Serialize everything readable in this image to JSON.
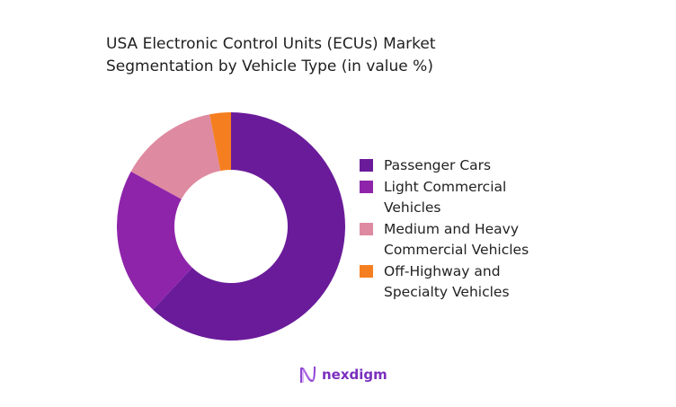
{
  "chart_data": {
    "type": "pie",
    "title": "USA Electronic Control Units (ECUs) Market Segmentation by Vehicle Type (in value %)",
    "title_lines": [
      "USA Electronic Control Units (ECUs) Market",
      "Segmentation by Vehicle Type (in value %)"
    ],
    "donut": true,
    "legend_position": "right",
    "slices": [
      {
        "label": "Passenger Cars",
        "value": 62,
        "color": "#6A1B9A"
      },
      {
        "label": "Light Commercial Vehicles",
        "label_lines": [
          "Light Commercial",
          "Vehicles"
        ],
        "value": 21,
        "color": "#8E24AA"
      },
      {
        "label": "Medium and Heavy Commercial Vehicles",
        "label_lines": [
          "Medium and Heavy",
          "Commercial Vehicles"
        ],
        "value": 14,
        "color": "#DE8AA0"
      },
      {
        "label": "Off-Highway and Specialty Vehicles",
        "label_lines": [
          "Off-Highway and",
          "Specialty Vehicles"
        ],
        "value": 3,
        "color": "#F57F20"
      }
    ]
  },
  "logo": {
    "text": "nexdigm",
    "color": "#7B2FBE"
  }
}
